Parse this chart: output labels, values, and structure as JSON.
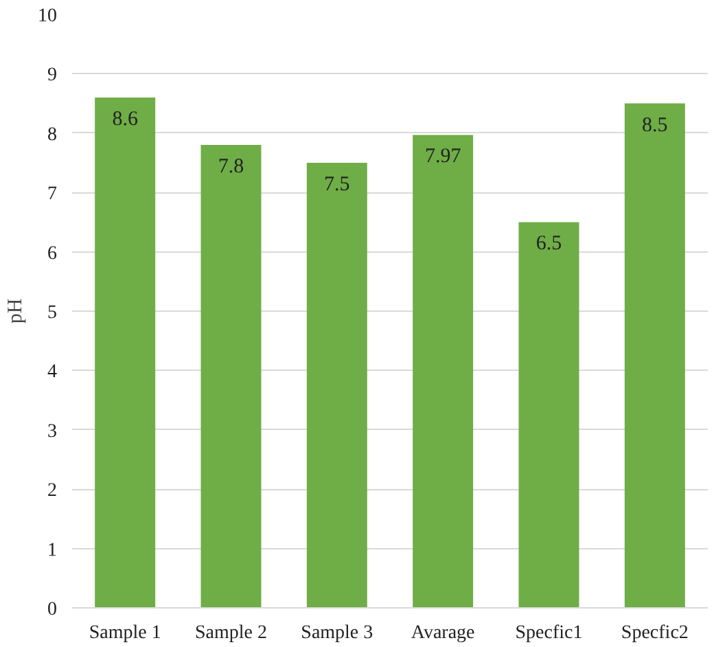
{
  "chart_data": {
    "type": "bar",
    "ylabel": "pH",
    "categories": [
      "Sample 1",
      "Sample 2",
      "Sample 3",
      "Avarage",
      "Specfic1",
      "Specfic2"
    ],
    "values": [
      8.6,
      7.8,
      7.5,
      7.97,
      6.5,
      8.5
    ],
    "color": "#6fad47",
    "ylim": [
      0,
      10
    ],
    "yticks": [
      0,
      1,
      2,
      3,
      4,
      5,
      6,
      7,
      8,
      9,
      10
    ],
    "grid": "y",
    "data_labels": true
  }
}
